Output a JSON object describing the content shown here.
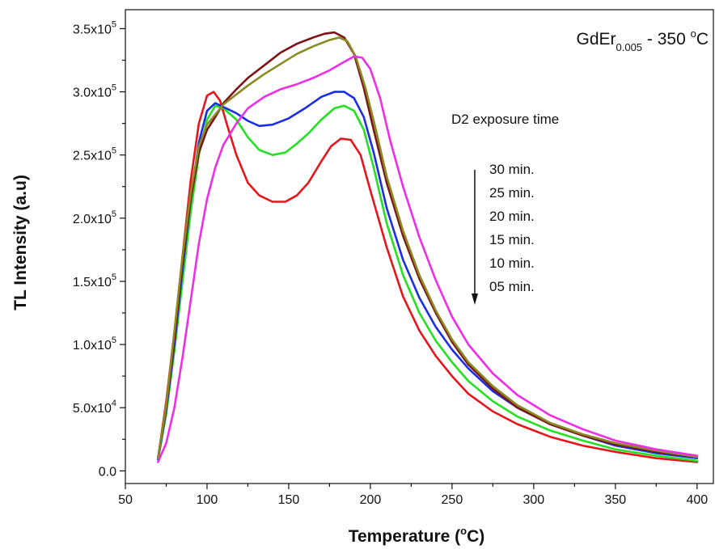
{
  "chart_data": {
    "type": "line",
    "title_main": "GdEr",
    "title_sub": "0.005",
    "title_rest": " - 350 ",
    "title_unit_sup": "o",
    "title_unit": "C",
    "xlabel_main": "Temperature (",
    "xlabel_sup": "o",
    "xlabel_end": "C)",
    "ylabel": "TL Intensity (a.u)",
    "xlim": [
      50,
      410
    ],
    "ylim": [
      -10000,
      365000
    ],
    "x_ticks": [
      50,
      100,
      150,
      200,
      250,
      300,
      350,
      400
    ],
    "y_ticks": [
      {
        "value": 0,
        "mantissa": "0.0",
        "exp": ""
      },
      {
        "value": 50000,
        "mantissa": "5.0x10",
        "exp": "4"
      },
      {
        "value": 100000,
        "mantissa": "1.0x10",
        "exp": "5"
      },
      {
        "value": 150000,
        "mantissa": "1.5x10",
        "exp": "5"
      },
      {
        "value": 200000,
        "mantissa": "2.0x10",
        "exp": "5"
      },
      {
        "value": 250000,
        "mantissa": "2.5x10",
        "exp": "5"
      },
      {
        "value": 300000,
        "mantissa": "3.0x10",
        "exp": "5"
      },
      {
        "value": 350000,
        "mantissa": "3.5x10",
        "exp": "5"
      }
    ],
    "annotation_title": "D2 exposure time",
    "annotation_items": [
      "30 min.",
      "25 min.",
      "20 min.",
      "15 min.",
      "10 min.",
      "05 min."
    ],
    "series": [
      {
        "color": "#e8141c",
        "x": [
          70,
          75,
          80,
          85,
          90,
          95,
          100,
          104,
          108,
          112,
          118,
          125,
          132,
          140,
          148,
          155,
          162,
          170,
          176,
          182,
          188,
          194,
          200,
          210,
          220,
          230,
          240,
          250,
          260,
          275,
          290,
          310,
          330,
          350,
          375,
          400
        ],
        "y": [
          10000,
          55000,
          110000,
          170000,
          230000,
          275000,
          297000,
          300000,
          293000,
          275000,
          250000,
          228000,
          218000,
          213000,
          213000,
          218000,
          228000,
          245000,
          257000,
          263000,
          262000,
          250000,
          222000,
          177000,
          138000,
          111000,
          91000,
          75000,
          61000,
          47000,
          37000,
          27000,
          20000,
          15000,
          10000,
          7000
        ]
      },
      {
        "color": "#22e022",
        "x": [
          70,
          75,
          80,
          85,
          90,
          95,
          100,
          105,
          110,
          118,
          125,
          132,
          140,
          148,
          155,
          162,
          170,
          178,
          184,
          190,
          196,
          202,
          210,
          220,
          230,
          240,
          250,
          260,
          275,
          290,
          310,
          330,
          350,
          375,
          400
        ],
        "y": [
          9000,
          45000,
          95000,
          150000,
          205000,
          250000,
          278000,
          289000,
          287000,
          278000,
          264000,
          254000,
          250000,
          252000,
          259000,
          267000,
          278000,
          287000,
          289000,
          285000,
          270000,
          240000,
          196000,
          155000,
          125000,
          103000,
          86000,
          71000,
          55000,
          43000,
          32000,
          24000,
          17000,
          12000,
          8000
        ]
      },
      {
        "color": "#1a2ee6",
        "x": [
          70,
          75,
          80,
          85,
          90,
          95,
          100,
          105,
          110,
          118,
          125,
          132,
          140,
          150,
          160,
          170,
          178,
          184,
          190,
          196,
          202,
          210,
          220,
          230,
          240,
          250,
          260,
          275,
          290,
          310,
          330,
          350,
          375,
          400
        ],
        "y": [
          9000,
          48000,
          100000,
          160000,
          215000,
          260000,
          285000,
          291000,
          288000,
          283000,
          277000,
          273000,
          274000,
          279000,
          287000,
          296000,
          300000,
          300000,
          295000,
          280000,
          252000,
          208000,
          167000,
          137000,
          114000,
          96000,
          81000,
          63000,
          50000,
          37000,
          28000,
          20000,
          14000,
          10000
        ]
      },
      {
        "color": "#7a1416",
        "x": [
          70,
          75,
          80,
          85,
          90,
          95,
          100,
          105,
          110,
          118,
          125,
          135,
          145,
          155,
          165,
          172,
          178,
          184,
          190,
          196,
          202,
          210,
          220,
          230,
          240,
          250,
          260,
          275,
          290,
          310,
          330,
          350,
          375,
          400
        ],
        "y": [
          10000,
          50000,
          105000,
          165000,
          215000,
          252000,
          270000,
          280000,
          291000,
          302000,
          311000,
          321000,
          331000,
          338000,
          343000,
          346000,
          347000,
          343000,
          330000,
          303000,
          270000,
          228000,
          186000,
          152000,
          125000,
          102000,
          84000,
          65000,
          50000,
          37000,
          28000,
          21000,
          15000,
          11000
        ]
      },
      {
        "color": "#8a8a22",
        "x": [
          70,
          75,
          80,
          85,
          90,
          95,
          100,
          105,
          110,
          118,
          125,
          135,
          145,
          155,
          165,
          175,
          181,
          186,
          191,
          197,
          203,
          210,
          220,
          230,
          240,
          250,
          260,
          275,
          290,
          310,
          330,
          350,
          375,
          400
        ],
        "y": [
          10000,
          52000,
          110000,
          170000,
          220000,
          257000,
          274000,
          282000,
          290000,
          298000,
          305000,
          314000,
          322000,
          330000,
          336000,
          341000,
          343000,
          340000,
          328000,
          303000,
          272000,
          233000,
          190000,
          155000,
          127000,
          104000,
          86000,
          67000,
          52000,
          38000,
          29000,
          22000,
          16000,
          11000
        ]
      },
      {
        "color": "#ee2ee6",
        "x": [
          70,
          75,
          80,
          85,
          90,
          95,
          100,
          105,
          110,
          118,
          125,
          135,
          145,
          155,
          165,
          175,
          183,
          190,
          195,
          200,
          206,
          212,
          220,
          230,
          240,
          250,
          260,
          275,
          290,
          310,
          330,
          350,
          375,
          400
        ],
        "y": [
          7000,
          22000,
          50000,
          90000,
          135000,
          180000,
          215000,
          240000,
          258000,
          275000,
          287000,
          296000,
          302000,
          306000,
          311000,
          317000,
          323000,
          328000,
          327000,
          318000,
          295000,
          262000,
          225000,
          185000,
          151000,
          122000,
          100000,
          77000,
          60000,
          44000,
          33000,
          24000,
          17000,
          12000
        ]
      }
    ]
  }
}
